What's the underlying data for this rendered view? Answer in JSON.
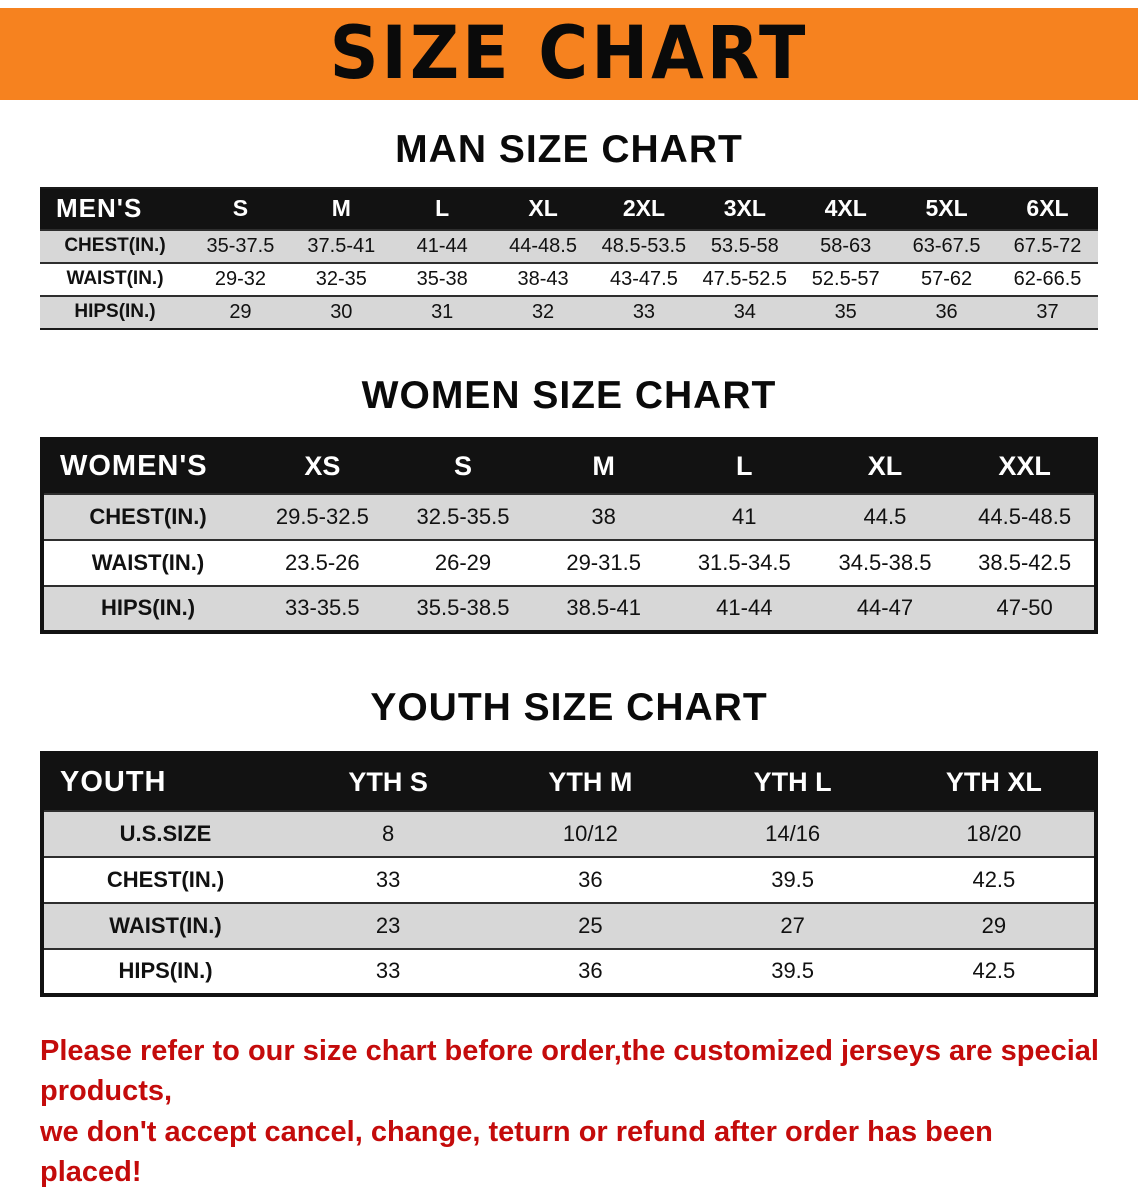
{
  "banner": {
    "title": "SIZE CHART"
  },
  "colors": {
    "banner_bg": "#F6821F",
    "header_bg": "#121212",
    "row_alt": "#D7D7D7",
    "note_red": "#C40B0B"
  },
  "sections": [
    {
      "id": "men",
      "heading": "MAN SIZE CHART",
      "table": {
        "label_header": "MEN'S",
        "columns": [
          "S",
          "M",
          "L",
          "XL",
          "2XL",
          "3XL",
          "4XL",
          "5XL",
          "6XL"
        ],
        "rows": [
          {
            "label": "CHEST(IN.)",
            "values": [
              "35-37.5",
              "37.5-41",
              "41-44",
              "44-48.5",
              "48.5-53.5",
              "53.5-58",
              "58-63",
              "63-67.5",
              "67.5-72"
            ]
          },
          {
            "label": "WAIST(IN.)",
            "values": [
              "29-32",
              "32-35",
              "35-38",
              "38-43",
              "43-47.5",
              "47.5-52.5",
              "52.5-57",
              "57-62",
              "62-66.5"
            ]
          },
          {
            "label": "HIPS(IN.)",
            "values": [
              "29",
              "30",
              "31",
              "32",
              "33",
              "34",
              "35",
              "36",
              "37"
            ]
          }
        ]
      }
    },
    {
      "id": "women",
      "heading": "WOMEN SIZE CHART",
      "table": {
        "label_header": "WOMEN'S",
        "columns": [
          "XS",
          "S",
          "M",
          "L",
          "XL",
          "XXL"
        ],
        "rows": [
          {
            "label": "CHEST(IN.)",
            "values": [
              "29.5-32.5",
              "32.5-35.5",
              "38",
              "41",
              "44.5",
              "44.5-48.5"
            ]
          },
          {
            "label": "WAIST(IN.)",
            "values": [
              "23.5-26",
              "26-29",
              "29-31.5",
              "31.5-34.5",
              "34.5-38.5",
              "38.5-42.5"
            ]
          },
          {
            "label": "HIPS(IN.)",
            "values": [
              "33-35.5",
              "35.5-38.5",
              "38.5-41",
              "41-44",
              "44-47",
              "47-50"
            ]
          }
        ]
      }
    },
    {
      "id": "youth",
      "heading": "YOUTH SIZE CHART",
      "table": {
        "label_header": "YOUTH",
        "columns": [
          "YTH S",
          "YTH M",
          "YTH L",
          "YTH XL"
        ],
        "rows": [
          {
            "label": "U.S.SIZE",
            "values": [
              "8",
              "10/12",
              "14/16",
              "18/20"
            ]
          },
          {
            "label": "CHEST(IN.)",
            "values": [
              "33",
              "36",
              "39.5",
              "42.5"
            ]
          },
          {
            "label": "WAIST(IN.)",
            "values": [
              "23",
              "25",
              "27",
              "29"
            ]
          },
          {
            "label": "HIPS(IN.)",
            "values": [
              "33",
              "36",
              "39.5",
              "42.5"
            ]
          }
        ]
      }
    }
  ],
  "note": {
    "lines": [
      "Please refer to our size chart before order,the customized jerseys are special products,",
      "we don't accept cancel, change, teturn or refund after order has been placed!"
    ]
  }
}
